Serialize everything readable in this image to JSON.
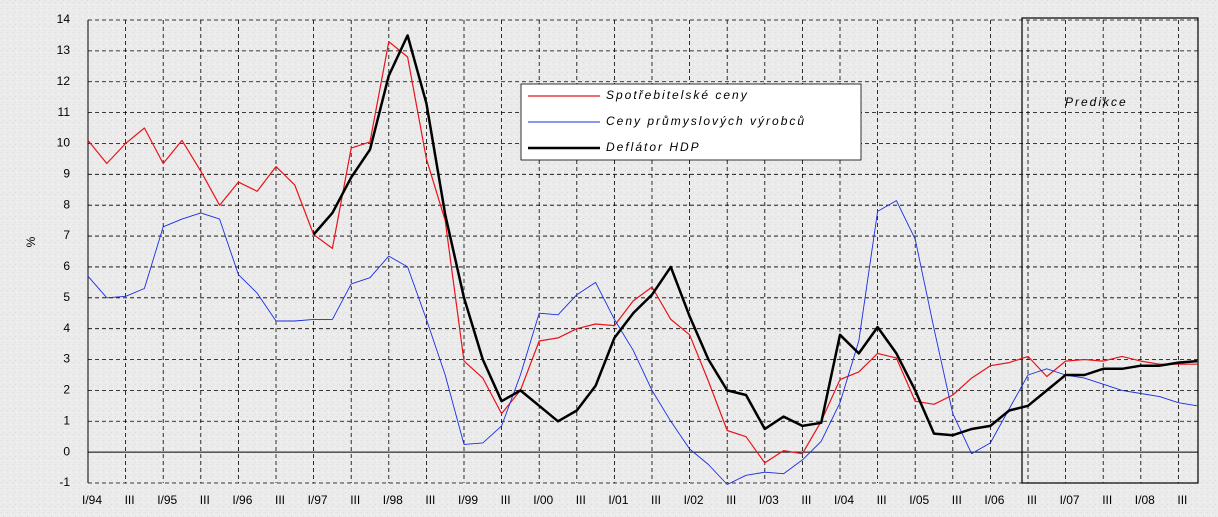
{
  "chart_data": {
    "type": "line",
    "y_label": "%",
    "annotation": "Predikce",
    "categories": [
      "I/94",
      null,
      "III",
      null,
      "I/95",
      null,
      "III",
      null,
      "I/96",
      null,
      "III",
      null,
      "I/97",
      null,
      "III",
      null,
      "I/98",
      null,
      "III",
      null,
      "I/99",
      null,
      "III",
      null,
      "I/00",
      null,
      "III",
      null,
      "I/01",
      null,
      "III",
      null,
      "I/02",
      null,
      "III",
      null,
      "I/03",
      null,
      "III",
      null,
      "I/04",
      null,
      "III",
      null,
      "I/05",
      null,
      "III",
      null,
      "I/06",
      null,
      "III",
      null,
      "I/07",
      null,
      "III",
      null,
      "I/08",
      null,
      "III",
      null
    ],
    "series": [
      {
        "name": "Spotřebitelské ceny",
        "color": "#e8141b",
        "width": 1.2,
        "values": [
          10.1,
          9.35,
          10.0,
          10.5,
          9.35,
          10.1,
          9.1,
          8.0,
          8.75,
          8.45,
          9.25,
          8.65,
          7.05,
          6.6,
          9.85,
          10.05,
          13.3,
          12.8,
          9.5,
          7.5,
          2.95,
          2.4,
          1.25,
          2.0,
          3.6,
          3.7,
          4.0,
          4.15,
          4.1,
          4.9,
          5.35,
          4.3,
          3.8,
          2.3,
          0.7,
          0.5,
          -0.35,
          0.05,
          -0.05,
          1.0,
          2.35,
          2.6,
          3.2,
          3.05,
          1.65,
          1.55,
          1.85,
          2.4,
          2.8,
          2.9,
          3.1,
          2.45,
          2.95,
          3.0,
          2.95,
          3.1,
          2.95,
          2.85,
          2.85,
          2.85
        ]
      },
      {
        "name": "Ceny průmyslových výrobců",
        "color": "#1a2ee0",
        "width": 0.9,
        "values": [
          5.7,
          5.0,
          5.05,
          5.3,
          7.3,
          7.55,
          7.75,
          7.55,
          5.75,
          5.15,
          4.25,
          4.25,
          4.3,
          4.3,
          5.45,
          5.65,
          6.35,
          6.0,
          4.3,
          2.5,
          0.25,
          0.3,
          0.85,
          2.5,
          4.5,
          4.45,
          5.1,
          5.5,
          4.3,
          3.3,
          2.0,
          1.0,
          0.1,
          -0.4,
          -1.05,
          -0.75,
          -0.65,
          -0.7,
          -0.25,
          0.35,
          1.6,
          3.6,
          7.8,
          8.15,
          6.9,
          4.0,
          1.25,
          -0.05,
          0.3,
          1.4,
          2.5,
          2.7,
          2.5,
          2.4,
          2.2,
          2.0,
          1.9,
          1.8,
          1.6,
          1.5
        ]
      },
      {
        "name": "Deflátor HDP",
        "color": "#000000",
        "width": 2.5,
        "values": [
          null,
          null,
          null,
          null,
          null,
          null,
          null,
          null,
          null,
          null,
          null,
          null,
          7.05,
          7.75,
          8.9,
          9.8,
          12.2,
          13.5,
          11.3,
          7.7,
          5.0,
          3.0,
          1.65,
          2.0,
          1.5,
          1.0,
          1.35,
          2.15,
          3.7,
          4.5,
          5.1,
          6.0,
          4.4,
          3.0,
          2.0,
          1.85,
          0.75,
          1.15,
          0.85,
          0.95,
          3.8,
          3.2,
          4.05,
          3.2,
          2.0,
          0.6,
          0.55,
          0.75,
          0.85,
          1.35,
          1.5,
          2.0,
          2.5,
          2.5,
          2.7,
          2.7,
          2.8,
          2.8,
          2.9,
          2.95
        ]
      }
    ],
    "ylim": [
      -1,
      14
    ],
    "yticks": [
      -1,
      0,
      1,
      2,
      3,
      4,
      5,
      6,
      7,
      8,
      9,
      10,
      11,
      12,
      13,
      14
    ],
    "grid": true
  }
}
